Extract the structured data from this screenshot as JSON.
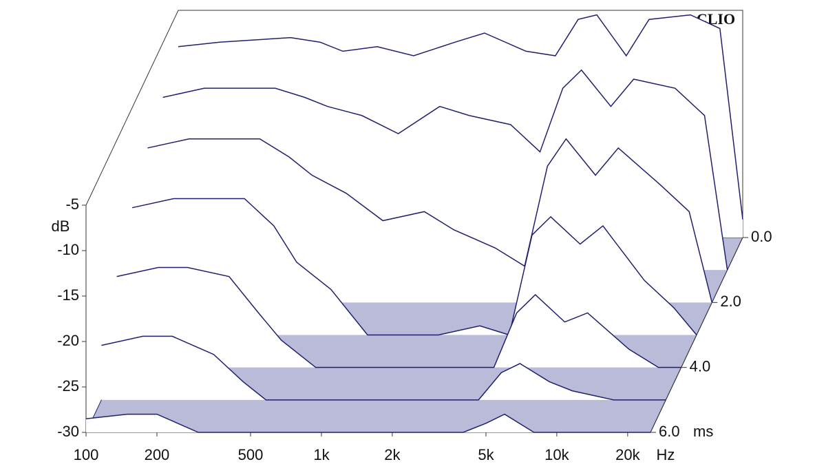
{
  "chart_data": {
    "type": "waterfall",
    "title": "CLIO",
    "y_label": "dB",
    "x_label": "Hz",
    "z_label": "ms",
    "color": "#1f1f6e",
    "x": [
      100,
      150,
      200,
      300,
      400,
      500,
      700,
      1000,
      1500,
      2000,
      3000,
      4000,
      5000,
      6000,
      8000,
      10000,
      15000,
      20000,
      25000
    ],
    "xlim": [
      100,
      25000
    ],
    "xticks": [
      100,
      200,
      500,
      {
        "value": 1000,
        "label": "1k"
      },
      {
        "value": 2000,
        "label": "2k"
      },
      {
        "value": 5000,
        "label": "5k"
      },
      {
        "value": 10000,
        "label": "10k"
      },
      {
        "value": 20000,
        "label": "20k"
      }
    ],
    "log_x": true,
    "ylim": [
      -30,
      -5
    ],
    "yticks": [
      -5,
      -10,
      -15,
      -20,
      -25,
      -30
    ],
    "zlim": [
      0,
      6
    ],
    "zticks": [
      {
        "value": 0,
        "label": "0.0"
      },
      {
        "value": 2,
        "label": "2.0"
      },
      {
        "value": 4,
        "label": "4.0"
      },
      {
        "value": 6,
        "label": "6.0"
      }
    ],
    "series": [
      {
        "time": 0,
        "values": [
          -9,
          -8.5,
          -8.3,
          -8,
          -8.5,
          -9.5,
          -9,
          -10,
          -8.5,
          -7.5,
          -9.5,
          -10,
          -6,
          -5.5,
          -10,
          -6,
          -5.5,
          -7,
          -28
        ]
      },
      {
        "time": 1,
        "values": [
          -11,
          -10,
          -10,
          -10,
          -11,
          -12,
          -13,
          -15,
          -12,
          -13,
          -14,
          -17,
          -10,
          -8,
          -12,
          -9,
          -10,
          -13,
          -30
        ]
      },
      {
        "time": 2,
        "values": [
          -13,
          -12,
          -12,
          -12,
          -14,
          -16,
          -18,
          -21,
          -20,
          -22,
          -24,
          -26,
          -15,
          -12,
          -16,
          -13,
          -17,
          -20,
          -30
        ]
      },
      {
        "time": 3,
        "values": [
          -16,
          -15,
          -15,
          -15,
          -18,
          -22,
          -25,
          -30,
          -30,
          -30,
          -29,
          -30,
          -19,
          -17,
          -20,
          -18,
          -24,
          -27,
          -30
        ]
      },
      {
        "time": 4,
        "values": [
          -20,
          -19,
          -19,
          -20,
          -24,
          -27,
          -30,
          -30,
          -30,
          -30,
          -30,
          -30,
          -24,
          -22,
          -25,
          -24,
          -28,
          -30,
          -30
        ]
      },
      {
        "time": 5,
        "values": [
          -24,
          -23,
          -23,
          -25,
          -28,
          -30,
          -30,
          -30,
          -30,
          -30,
          -30,
          -30,
          -27,
          -26,
          -28,
          -29,
          -30,
          -30,
          -30
        ]
      },
      {
        "time": 6,
        "values": [
          -28.5,
          -28,
          -28,
          -30,
          -30,
          -30,
          -30,
          -30,
          -30,
          -30,
          -30,
          -30,
          -29,
          -28,
          -30,
          -30,
          -30,
          -30,
          -30
        ]
      }
    ]
  }
}
